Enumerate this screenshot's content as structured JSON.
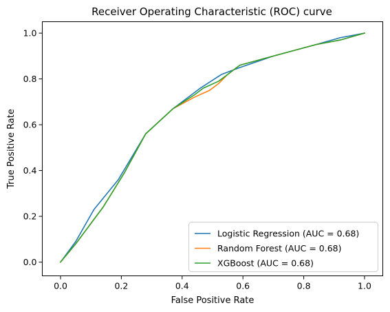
{
  "chart_data": {
    "type": "line",
    "title": "Receiver Operating Characteristic (ROC) curve",
    "xlabel": "False Positive Rate",
    "ylabel": "True Positive Rate",
    "xlim": [
      -0.06,
      1.06
    ],
    "ylim": [
      -0.06,
      1.05
    ],
    "xticks": [
      "0.0",
      "0.2",
      "0.4",
      "0.6",
      "0.8",
      "1.0"
    ],
    "yticks": [
      "0.0",
      "0.2",
      "0.4",
      "0.6",
      "0.8",
      "1.0"
    ],
    "legend_position": "lower-right",
    "series": [
      {
        "name": "Logistic Regression (AUC = 0.68)",
        "color": "#1f77b4",
        "x": [
          0.0,
          0.05,
          0.11,
          0.19,
          0.28,
          0.37,
          0.4,
          0.46,
          0.53,
          0.59,
          0.7,
          0.84,
          0.92,
          1.0
        ],
        "y": [
          0.0,
          0.09,
          0.23,
          0.36,
          0.56,
          0.67,
          0.7,
          0.76,
          0.82,
          0.85,
          0.9,
          0.95,
          0.98,
          1.0
        ]
      },
      {
        "name": "Random Forest (AUC = 0.68)",
        "color": "#ff7f0e",
        "x": [
          0.0,
          0.05,
          0.14,
          0.21,
          0.28,
          0.37,
          0.44,
          0.49,
          0.52,
          0.55,
          0.59,
          0.7,
          0.84,
          0.92,
          1.0
        ],
        "y": [
          0.0,
          0.08,
          0.24,
          0.39,
          0.56,
          0.67,
          0.72,
          0.75,
          0.78,
          0.82,
          0.86,
          0.9,
          0.95,
          0.97,
          1.0
        ]
      },
      {
        "name": "XGBoost (AUC = 0.68)",
        "color": "#2ca02c",
        "x": [
          0.0,
          0.05,
          0.14,
          0.21,
          0.28,
          0.37,
          0.44,
          0.47,
          0.52,
          0.55,
          0.59,
          0.7,
          0.84,
          0.92,
          1.0
        ],
        "y": [
          0.0,
          0.08,
          0.24,
          0.39,
          0.56,
          0.67,
          0.73,
          0.76,
          0.79,
          0.82,
          0.86,
          0.9,
          0.95,
          0.97,
          1.0
        ]
      }
    ]
  }
}
